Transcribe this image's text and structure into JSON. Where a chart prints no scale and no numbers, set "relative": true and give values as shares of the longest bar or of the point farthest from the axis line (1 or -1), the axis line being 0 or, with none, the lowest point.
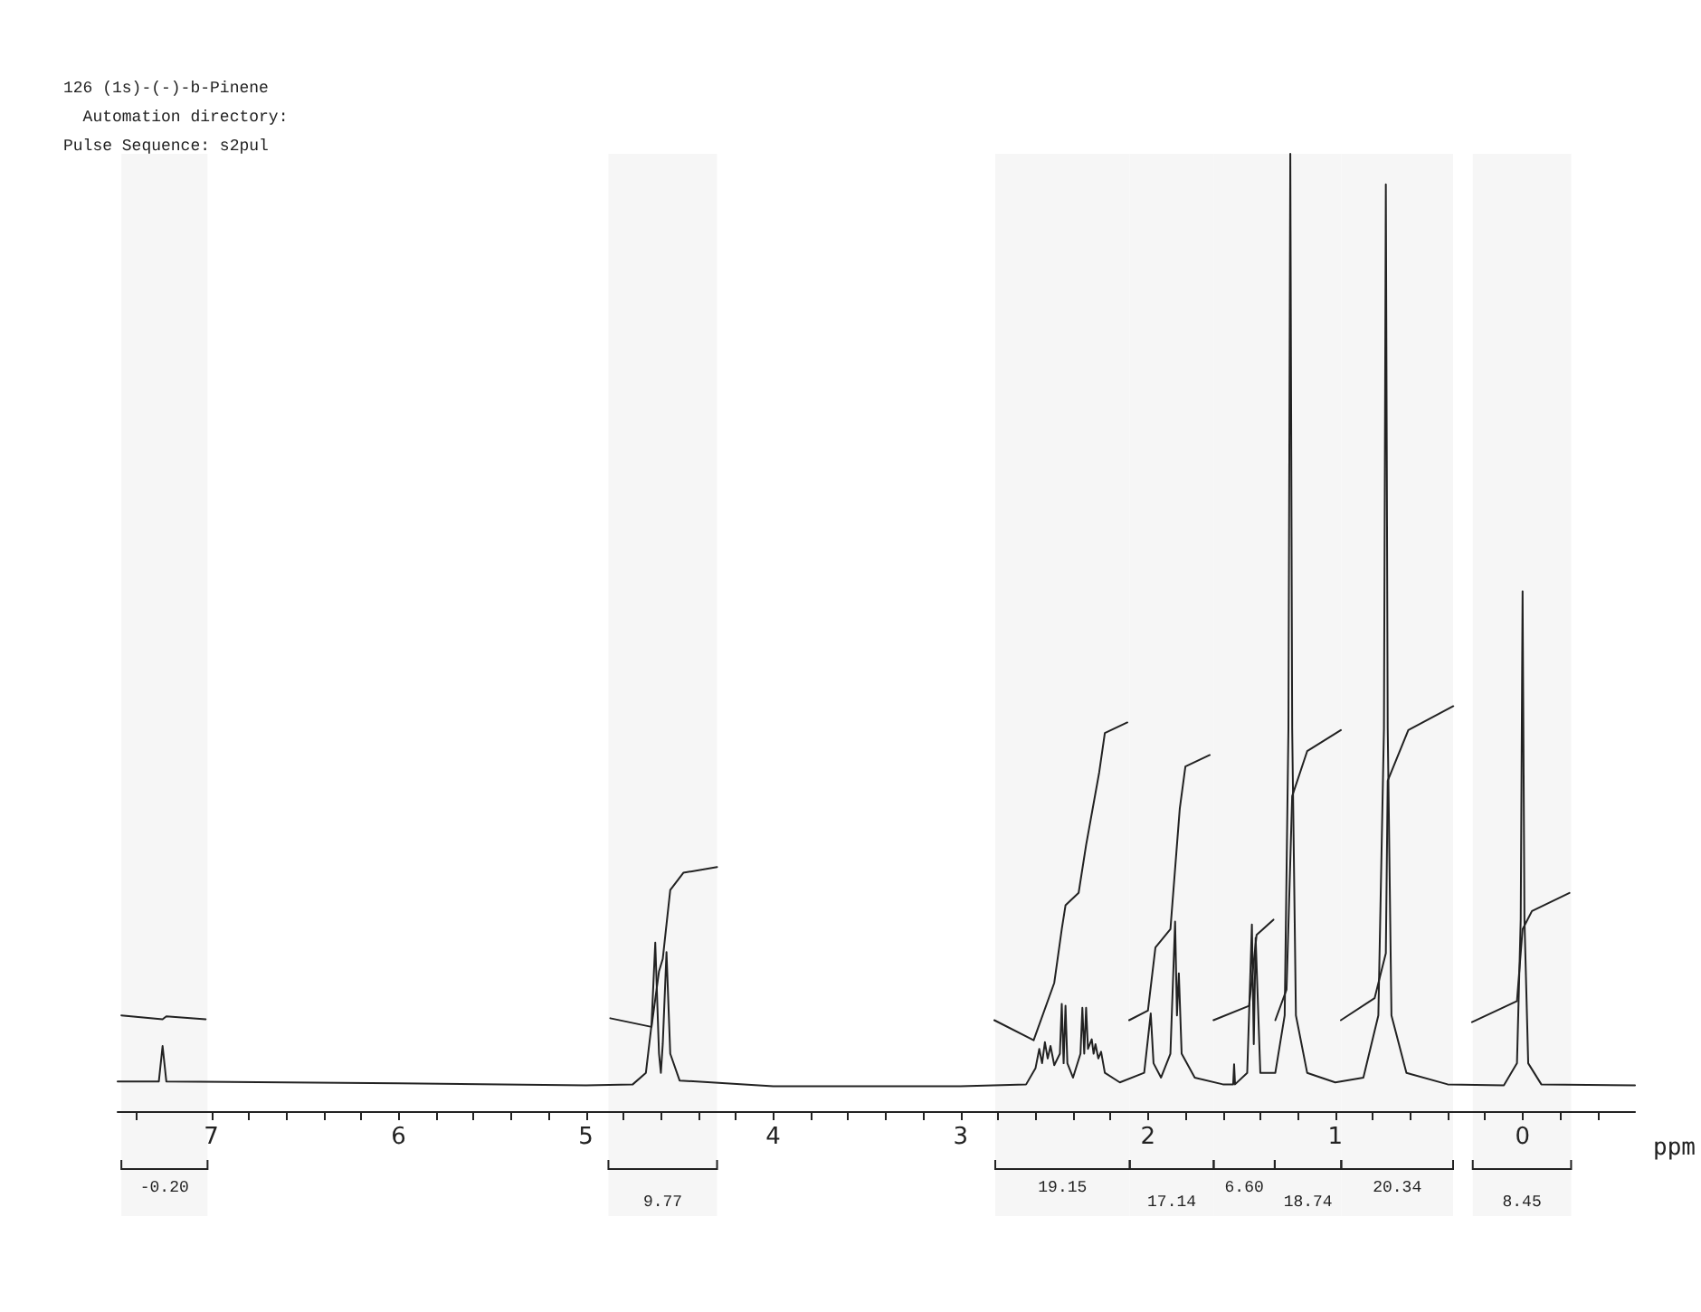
{
  "chart_data": {
    "type": "line",
    "title": "126 (1s)-(-)-b-Pinene",
    "subtitle": "Automation directory:",
    "annotations": [
      "Pulse Sequence: s2pul"
    ],
    "xlabel": "ppm",
    "relative": true,
    "marker": "none",
    "line_style": "solid",
    "xlim": [
      7.5,
      -0.6
    ],
    "xticks": [
      {
        "value": 7.4,
        "label": null
      },
      7,
      {
        "value": 6.8,
        "label": null
      },
      {
        "value": 6.6,
        "label": null
      },
      {
        "value": 6.4,
        "label": null
      },
      {
        "value": 6.2,
        "label": null
      },
      6,
      {
        "value": 5.8,
        "label": null
      },
      {
        "value": 5.6,
        "label": null
      },
      {
        "value": 5.4,
        "label": null
      },
      {
        "value": 5.2,
        "label": null
      },
      5,
      {
        "value": 4.8,
        "label": null
      },
      {
        "value": 4.6,
        "label": null
      },
      {
        "value": 4.4,
        "label": null
      },
      {
        "value": 4.2,
        "label": null
      },
      4,
      {
        "value": 3.8,
        "label": null
      },
      {
        "value": 3.6,
        "label": null
      },
      {
        "value": 3.4,
        "label": null
      },
      {
        "value": 3.2,
        "label": null
      },
      3,
      {
        "value": 2.8,
        "label": null
      },
      {
        "value": 2.6,
        "label": null
      },
      {
        "value": 2.4,
        "label": null
      },
      {
        "value": 2.2,
        "label": null
      },
      2,
      {
        "value": 1.8,
        "label": null
      },
      {
        "value": 1.6,
        "label": null
      },
      {
        "value": 1.4,
        "label": null
      },
      {
        "value": 1.2,
        "label": null
      },
      1,
      {
        "value": 0.8,
        "label": null
      },
      {
        "value": 0.6,
        "label": null
      },
      {
        "value": 0.4,
        "label": null
      },
      {
        "value": 0.2,
        "label": null
      },
      0,
      {
        "value": -0.2,
        "label": null
      },
      {
        "value": -0.4,
        "label": null
      }
    ],
    "series": [
      {
        "color": "#222222",
        "x": [
          7.5,
          7.28,
          7.26,
          7.24,
          6.0,
          5.0,
          4.75,
          4.68,
          4.65,
          4.63,
          4.61,
          4.6,
          4.59,
          4.57,
          4.55,
          4.5,
          4.0,
          3.0,
          2.65,
          2.6,
          2.58,
          2.565,
          2.55,
          2.535,
          2.52,
          2.5,
          2.47,
          2.46,
          2.45,
          2.44,
          2.43,
          2.4,
          2.36,
          2.35,
          2.34,
          2.33,
          2.32,
          2.3,
          2.29,
          2.28,
          2.265,
          2.25,
          2.23,
          2.15,
          2.02,
          1.985,
          1.97,
          1.93,
          1.88,
          1.855,
          1.845,
          1.835,
          1.82,
          1.75,
          1.6,
          1.545,
          1.54,
          1.535,
          1.47,
          1.445,
          1.435,
          1.425,
          1.4,
          1.32,
          1.27,
          1.25,
          1.24,
          1.23,
          1.21,
          1.15,
          1.0,
          0.85,
          0.77,
          0.74,
          0.73,
          0.72,
          0.7,
          0.62,
          0.4,
          0.1,
          0.03,
          0.01,
          0.0,
          -0.01,
          -0.03,
          -0.1,
          -0.6
        ],
        "values": [
          0.031,
          0.031,
          0.068,
          0.031,
          0.029,
          0.027,
          0.028,
          0.04,
          0.09,
          0.176,
          0.06,
          0.04,
          0.07,
          0.166,
          0.06,
          0.032,
          0.026,
          0.026,
          0.028,
          0.045,
          0.065,
          0.05,
          0.072,
          0.055,
          0.068,
          0.048,
          0.06,
          0.112,
          0.05,
          0.11,
          0.05,
          0.035,
          0.06,
          0.108,
          0.06,
          0.108,
          0.065,
          0.075,
          0.06,
          0.07,
          0.055,
          0.062,
          0.04,
          0.03,
          0.04,
          0.102,
          0.05,
          0.035,
          0.06,
          0.198,
          0.1,
          0.144,
          0.06,
          0.035,
          0.028,
          0.028,
          0.049,
          0.028,
          0.04,
          0.195,
          0.07,
          0.181,
          0.04,
          0.04,
          0.1,
          0.4,
          1.0,
          0.4,
          0.1,
          0.04,
          0.03,
          0.035,
          0.1,
          0.4,
          0.968,
          0.4,
          0.1,
          0.04,
          0.028,
          0.027,
          0.05,
          0.2,
          0.543,
          0.2,
          0.05,
          0.028,
          0.027
        ]
      },
      {
        "color": "#222222",
        "x": [
          7.48,
          7.26,
          7.24,
          7.03
        ],
        "values": [
          0.1,
          0.096,
          0.099,
          0.096
        ]
      },
      {
        "color": "#222222",
        "x": [
          4.87,
          4.65,
          4.61,
          4.59,
          4.55,
          4.48,
          4.3
        ],
        "values": [
          0.097,
          0.088,
          0.146,
          0.159,
          0.231,
          0.249,
          0.255
        ]
      },
      {
        "color": "#222222",
        "x": [
          2.82,
          2.61,
          2.5,
          2.46,
          2.44,
          2.37,
          2.33,
          2.26,
          2.23,
          2.11
        ],
        "values": [
          0.095,
          0.074,
          0.134,
          0.19,
          0.215,
          0.228,
          0.278,
          0.354,
          0.395,
          0.406
        ]
      },
      {
        "color": "#222222",
        "x": [
          2.1,
          2.0,
          1.96,
          1.88,
          1.83,
          1.8,
          1.67
        ],
        "values": [
          0.095,
          0.105,
          0.171,
          0.19,
          0.316,
          0.36,
          0.372
        ]
      },
      {
        "color": "#222222",
        "x": [
          1.65,
          1.46,
          1.42,
          1.33
        ],
        "values": [
          0.095,
          0.11,
          0.184,
          0.2
        ]
      },
      {
        "color": "#222222",
        "x": [
          1.32,
          1.26,
          1.23,
          1.15,
          0.97
        ],
        "values": [
          0.095,
          0.127,
          0.329,
          0.376,
          0.398
        ]
      },
      {
        "color": "#222222",
        "x": [
          0.97,
          0.79,
          0.73,
          0.72,
          0.61,
          0.37
        ],
        "values": [
          0.095,
          0.118,
          0.165,
          0.345,
          0.398,
          0.423
        ]
      },
      {
        "color": "#222222",
        "x": [
          0.27,
          0.03,
          0.0,
          -0.05,
          -0.25
        ],
        "values": [
          0.093,
          0.115,
          0.19,
          0.209,
          0.228
        ]
      }
    ],
    "bands": [
      {
        "axis": "x",
        "from": 7.48,
        "to": 7.02,
        "label": "-0.20"
      },
      {
        "axis": "x",
        "from": 4.88,
        "to": 4.3,
        "label": "9.77"
      },
      {
        "axis": "x",
        "from": 2.815,
        "to": 2.097,
        "label": "19.15"
      },
      {
        "axis": "x",
        "from": 2.097,
        "to": 1.649,
        "label": "17.14"
      },
      {
        "axis": "x",
        "from": 1.649,
        "to": 1.323,
        "label": "6.60"
      },
      {
        "axis": "x",
        "from": 1.323,
        "to": 0.968,
        "label": "18.74"
      },
      {
        "axis": "x",
        "from": 0.968,
        "to": 0.371,
        "label": "20.34"
      },
      {
        "axis": "x",
        "from": 0.266,
        "to": -0.259,
        "label": "8.45"
      }
    ]
  }
}
